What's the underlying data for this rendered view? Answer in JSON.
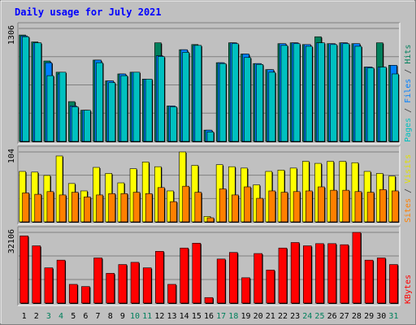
{
  "chart_data": {
    "type": "bar",
    "title": "Daily usage for July 2021",
    "categories": [
      "1",
      "2",
      "3",
      "4",
      "5",
      "6",
      "7",
      "8",
      "9",
      "10",
      "11",
      "12",
      "13",
      "14",
      "15",
      "16",
      "17",
      "18",
      "19",
      "20",
      "21",
      "22",
      "23",
      "24",
      "25",
      "26",
      "27",
      "28",
      "29",
      "30",
      "31"
    ],
    "weekend_days": [
      "3",
      "4",
      "10",
      "11",
      "17",
      "18",
      "24",
      "25",
      "31"
    ],
    "panels": [
      {
        "id": "traffic",
        "ymax_label": "1306",
        "ymax": 1306,
        "legend": [
          {
            "text": "Pages",
            "color": "#00C0C0"
          },
          {
            "text": " / ",
            "color": "#404040"
          },
          {
            "text": "Files",
            "color": "#0080FF"
          },
          {
            "text": " / ",
            "color": "#404040"
          },
          {
            "text": "Hits",
            "color": "#00805C"
          }
        ],
        "series": [
          {
            "name": "Hits",
            "color": "#00805C",
            "values": [
              1230,
              1150,
              930,
              800,
              460,
              360,
              940,
              700,
              780,
              800,
              720,
              1140,
              410,
              1060,
              1120,
              130,
              910,
              1140,
              1010,
              900,
              830,
              1130,
              1140,
              1120,
              1210,
              1130,
              1140,
              1130,
              860,
              1140,
              880
            ]
          },
          {
            "name": "Files",
            "color": "#0080FF",
            "values": [
              1220,
              1140,
              910,
              780,
              410,
              360,
              940,
              700,
              780,
              800,
              720,
              990,
              410,
              1060,
              1110,
              130,
              910,
              1140,
              1010,
              900,
              830,
              1130,
              1140,
              1120,
              1140,
              1130,
              1140,
              1130,
              860,
              860,
              880
            ]
          },
          {
            "name": "Pages",
            "color": "#00C0C0",
            "values": [
              1210,
              1140,
              760,
              800,
              400,
              360,
              910,
              680,
              760,
              800,
              720,
              980,
              400,
              1030,
              1110,
              110,
              900,
              1130,
              970,
              890,
              800,
              1110,
              1130,
              1100,
              1140,
              1120,
              1130,
              1100,
              850,
              860,
              780
            ]
          }
        ]
      },
      {
        "id": "visits",
        "ymax_label": "104",
        "ymax": 104,
        "legend": [
          {
            "text": "Sites",
            "color": "#FF8000"
          },
          {
            "text": " / ",
            "color": "#404040"
          },
          {
            "text": "Visits",
            "color": "#E0E000"
          }
        ],
        "series": [
          {
            "name": "Visits",
            "color": "#FFFF00",
            "values": [
              75,
              74,
              69,
              98,
              57,
              46,
              81,
              72,
              58,
              79,
              89,
              82,
              46,
              104,
              84,
              8,
              85,
              82,
              80,
              55,
              75,
              77,
              80,
              90,
              87,
              90,
              90,
              88,
              75,
              72,
              68
            ]
          },
          {
            "name": "Sites",
            "color": "#FF8000",
            "values": [
              43,
              41,
              45,
              40,
              44,
              37,
              40,
              42,
              42,
              44,
              42,
              51,
              30,
              53,
              44,
              6,
              49,
              40,
              52,
              35,
              46,
              44,
              45,
              46,
              52,
              47,
              47,
              45,
              44,
              48,
              46
            ]
          }
        ]
      },
      {
        "id": "kbytes",
        "ymax_label": "32106",
        "ymax": 32106,
        "legend": [
          {
            "text": "KBytes",
            "color": "#FF0000"
          }
        ],
        "series": [
          {
            "name": "KBytes",
            "color": "#FF0000",
            "values": [
              30500,
              26000,
              16000,
              19500,
              8500,
              7500,
              20500,
              13500,
              17500,
              18500,
              16000,
              23500,
              8500,
              25000,
              27200,
              2500,
              20000,
              23000,
              11500,
              22500,
              15000,
              25000,
              27500,
              26000,
              27000,
              27000,
              26500,
              32100,
              19500,
              20500,
              17500
            ]
          }
        ]
      }
    ]
  }
}
